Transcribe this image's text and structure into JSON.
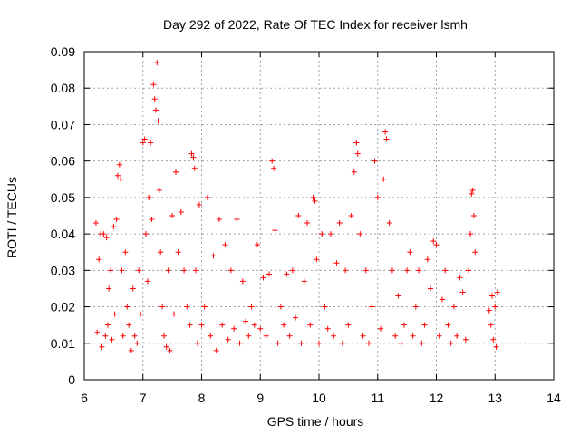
{
  "chart_data": {
    "type": "scatter",
    "title": "Day 292 of 2022, Rate Of TEC Index for receiver lsmh",
    "xlabel": "GPS time / hours",
    "ylabel": "ROTI / TECUs",
    "xlim": [
      6,
      14
    ],
    "ylim": [
      0,
      0.09
    ],
    "x_ticks": [
      "6",
      "7",
      "8",
      "9",
      "10",
      "11",
      "12",
      "13",
      "14"
    ],
    "y_ticks": [
      "0",
      "0.01",
      "0.02",
      "0.03",
      "0.04",
      "0.05",
      "0.06",
      "0.07",
      "0.08",
      "0.09"
    ],
    "grid": true,
    "marker": "plus",
    "series_color": "#ff0000",
    "points_note_free": true,
    "series": [
      {
        "values": [
          [
            6.2,
            0.043
          ],
          [
            6.22,
            0.013
          ],
          [
            6.25,
            0.033
          ],
          [
            6.28,
            0.04
          ],
          [
            6.3,
            0.009
          ],
          [
            6.33,
            0.04
          ],
          [
            6.36,
            0.012
          ],
          [
            6.38,
            0.039
          ],
          [
            6.4,
            0.015
          ],
          [
            6.42,
            0.025
          ],
          [
            6.45,
            0.03
          ],
          [
            6.47,
            0.011
          ],
          [
            6.5,
            0.042
          ],
          [
            6.52,
            0.018
          ],
          [
            6.55,
            0.044
          ],
          [
            6.57,
            0.056
          ],
          [
            6.6,
            0.059
          ],
          [
            6.62,
            0.055
          ],
          [
            6.64,
            0.03
          ],
          [
            6.66,
            0.012
          ],
          [
            6.7,
            0.035
          ],
          [
            6.73,
            0.02
          ],
          [
            6.76,
            0.015
          ],
          [
            6.8,
            0.008
          ],
          [
            6.83,
            0.025
          ],
          [
            6.86,
            0.012
          ],
          [
            6.9,
            0.01
          ],
          [
            6.93,
            0.03
          ],
          [
            6.96,
            0.018
          ],
          [
            7.0,
            0.065
          ],
          [
            7.03,
            0.066
          ],
          [
            7.05,
            0.04
          ],
          [
            7.08,
            0.027
          ],
          [
            7.1,
            0.05
          ],
          [
            7.13,
            0.065
          ],
          [
            7.15,
            0.044
          ],
          [
            7.18,
            0.081
          ],
          [
            7.2,
            0.077
          ],
          [
            7.22,
            0.074
          ],
          [
            7.24,
            0.087
          ],
          [
            7.26,
            0.071
          ],
          [
            7.28,
            0.052
          ],
          [
            7.3,
            0.035
          ],
          [
            7.33,
            0.02
          ],
          [
            7.36,
            0.012
          ],
          [
            7.4,
            0.009
          ],
          [
            7.43,
            0.03
          ],
          [
            7.46,
            0.008
          ],
          [
            7.5,
            0.045
          ],
          [
            7.53,
            0.018
          ],
          [
            7.56,
            0.057
          ],
          [
            7.6,
            0.035
          ],
          [
            7.65,
            0.046
          ],
          [
            7.7,
            0.03
          ],
          [
            7.75,
            0.02
          ],
          [
            7.8,
            0.015
          ],
          [
            7.83,
            0.062
          ],
          [
            7.86,
            0.061
          ],
          [
            7.88,
            0.058
          ],
          [
            7.9,
            0.03
          ],
          [
            7.93,
            0.01
          ],
          [
            7.96,
            0.048
          ],
          [
            8.0,
            0.015
          ],
          [
            8.05,
            0.02
          ],
          [
            8.1,
            0.05
          ],
          [
            8.15,
            0.012
          ],
          [
            8.2,
            0.034
          ],
          [
            8.25,
            0.008
          ],
          [
            8.3,
            0.044
          ],
          [
            8.35,
            0.015
          ],
          [
            8.4,
            0.037
          ],
          [
            8.45,
            0.011
          ],
          [
            8.5,
            0.03
          ],
          [
            8.55,
            0.014
          ],
          [
            8.6,
            0.044
          ],
          [
            8.65,
            0.01
          ],
          [
            8.7,
            0.027
          ],
          [
            8.75,
            0.016
          ],
          [
            8.8,
            0.012
          ],
          [
            8.85,
            0.02
          ],
          [
            8.9,
            0.015
          ],
          [
            8.95,
            0.037
          ],
          [
            9.0,
            0.014
          ],
          [
            9.05,
            0.028
          ],
          [
            9.1,
            0.012
          ],
          [
            9.15,
            0.029
          ],
          [
            9.2,
            0.06
          ],
          [
            9.23,
            0.058
          ],
          [
            9.25,
            0.041
          ],
          [
            9.3,
            0.01
          ],
          [
            9.35,
            0.02
          ],
          [
            9.4,
            0.015
          ],
          [
            9.45,
            0.029
          ],
          [
            9.5,
            0.012
          ],
          [
            9.55,
            0.03
          ],
          [
            9.6,
            0.017
          ],
          [
            9.65,
            0.045
          ],
          [
            9.7,
            0.01
          ],
          [
            9.75,
            0.027
          ],
          [
            9.8,
            0.043
          ],
          [
            9.85,
            0.015
          ],
          [
            9.9,
            0.05
          ],
          [
            9.93,
            0.049
          ],
          [
            9.96,
            0.033
          ],
          [
            10.0,
            0.01
          ],
          [
            10.05,
            0.04
          ],
          [
            10.1,
            0.02
          ],
          [
            10.15,
            0.014
          ],
          [
            10.2,
            0.04
          ],
          [
            10.25,
            0.012
          ],
          [
            10.3,
            0.032
          ],
          [
            10.35,
            0.043
          ],
          [
            10.4,
            0.01
          ],
          [
            10.45,
            0.03
          ],
          [
            10.5,
            0.015
          ],
          [
            10.55,
            0.045
          ],
          [
            10.6,
            0.057
          ],
          [
            10.64,
            0.065
          ],
          [
            10.66,
            0.062
          ],
          [
            10.7,
            0.04
          ],
          [
            10.75,
            0.012
          ],
          [
            10.8,
            0.03
          ],
          [
            10.85,
            0.01
          ],
          [
            10.9,
            0.02
          ],
          [
            10.95,
            0.06
          ],
          [
            11.0,
            0.05
          ],
          [
            11.05,
            0.014
          ],
          [
            11.1,
            0.055
          ],
          [
            11.13,
            0.068
          ],
          [
            11.15,
            0.066
          ],
          [
            11.2,
            0.043
          ],
          [
            11.25,
            0.03
          ],
          [
            11.3,
            0.012
          ],
          [
            11.35,
            0.023
          ],
          [
            11.4,
            0.01
          ],
          [
            11.45,
            0.015
          ],
          [
            11.5,
            0.03
          ],
          [
            11.55,
            0.035
          ],
          [
            11.6,
            0.012
          ],
          [
            11.65,
            0.02
          ],
          [
            11.7,
            0.03
          ],
          [
            11.75,
            0.01
          ],
          [
            11.8,
            0.015
          ],
          [
            11.85,
            0.033
          ],
          [
            11.9,
            0.025
          ],
          [
            11.95,
            0.038
          ],
          [
            12.0,
            0.037
          ],
          [
            12.05,
            0.012
          ],
          [
            12.1,
            0.022
          ],
          [
            12.15,
            0.03
          ],
          [
            12.2,
            0.015
          ],
          [
            12.25,
            0.01
          ],
          [
            12.3,
            0.02
          ],
          [
            12.35,
            0.012
          ],
          [
            12.4,
            0.028
          ],
          [
            12.45,
            0.024
          ],
          [
            12.5,
            0.011
          ],
          [
            12.55,
            0.03
          ],
          [
            12.58,
            0.04
          ],
          [
            12.6,
            0.051
          ],
          [
            12.62,
            0.052
          ],
          [
            12.64,
            0.045
          ],
          [
            12.66,
            0.035
          ],
          [
            12.9,
            0.019
          ],
          [
            12.93,
            0.015
          ],
          [
            12.95,
            0.023
          ],
          [
            12.97,
            0.011
          ],
          [
            13.0,
            0.02
          ],
          [
            13.02,
            0.009
          ],
          [
            13.04,
            0.024
          ]
        ]
      }
    ]
  }
}
